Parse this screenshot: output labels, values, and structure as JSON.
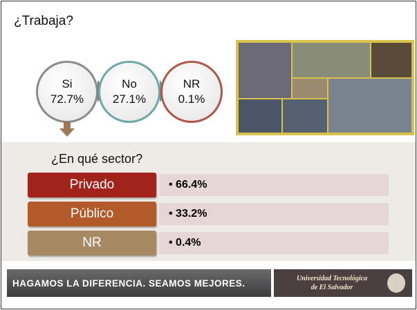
{
  "title": "¿Trabaja?",
  "circles": [
    {
      "label": "Si",
      "value": "72.7%"
    },
    {
      "label": "No",
      "value": "27.1%"
    },
    {
      "label": "NR",
      "value": "0.1%"
    }
  ],
  "sector_title": "¿En qué sector?",
  "sectors": [
    {
      "label": "Privado",
      "value": "66.4%"
    },
    {
      "label": "Público",
      "value": "33.2%"
    },
    {
      "label": "NR",
      "value": "0.4%"
    }
  ],
  "footer": {
    "slogan": "HAGAMOS LA DIFERENCIA. SEAMOS MEJORES.",
    "logo_line1": "Universidad Tecnológica",
    "logo_line2": "de El Salvador"
  }
}
